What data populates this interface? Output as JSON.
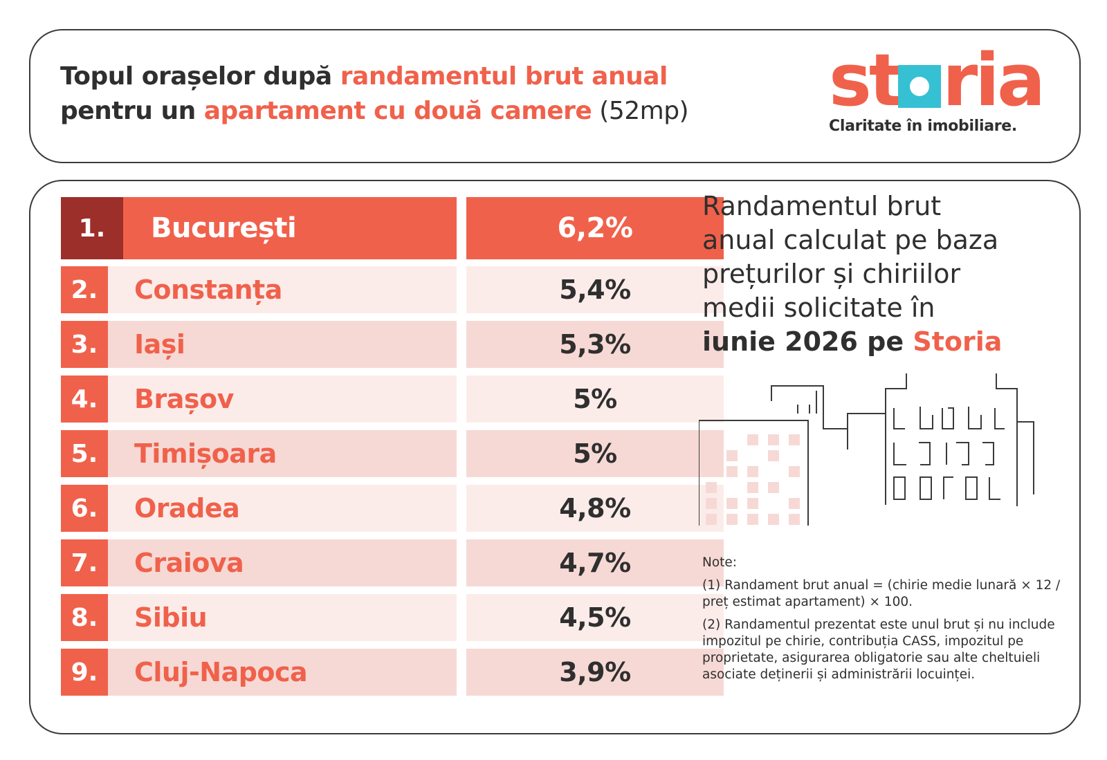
{
  "header": {
    "title_part1": "Topul orașelor după ",
    "title_accent1": "randamentul brut anual",
    "title_part2": "pentru un ",
    "title_accent2": "apartament cu două camere",
    "title_part3": " (52mp)"
  },
  "logo": {
    "brand_st": "st",
    "brand_ria": "ria",
    "tagline": "Claritate în imobiliare."
  },
  "colors": {
    "accent": "#f0614b",
    "first_rank_bg": "#9c2f2a",
    "logo_square": "#35c1d3",
    "row_light": "#fbecea",
    "row_dark": "#f6d9d5",
    "text": "#2f2f2f"
  },
  "description": {
    "line1": "Randamentul brut",
    "line2": "anual calculat pe baza",
    "line3": "prețurilor și chiriilor",
    "line4": "medii solicitate în",
    "line5_strong": "iunie 2026 pe ",
    "line5_accent": "Storia"
  },
  "notes": {
    "heading": "Note:",
    "note1": "(1) Randament brut anual = (chirie medie lunară × 12 / preț estimat apartament) × 100.",
    "note2": "(2) Randamentul prezentat este unul brut și nu include impozitul pe chirie, contribuția CASS, impozitul pe proprietate, asigurarea obligatorie sau alte cheltuieli asociate deținerii și administrării locuinței."
  },
  "chart_data": {
    "type": "table",
    "columns": [
      "rank",
      "city",
      "yield"
    ],
    "rows": [
      {
        "rank": "1.",
        "city": "București",
        "value": 6.2,
        "label": "6,2%"
      },
      {
        "rank": "2.",
        "city": "Constanța",
        "value": 5.4,
        "label": "5,4%"
      },
      {
        "rank": "3.",
        "city": "Iași",
        "value": 5.3,
        "label": "5,3%"
      },
      {
        "rank": "4.",
        "city": "Brașov",
        "value": 5.0,
        "label": "5%"
      },
      {
        "rank": "5.",
        "city": "Timișoara",
        "value": 5.0,
        "label": "5%"
      },
      {
        "rank": "6.",
        "city": "Oradea",
        "value": 4.8,
        "label": "4,8%"
      },
      {
        "rank": "7.",
        "city": "Craiova",
        "value": 4.7,
        "label": "4,7%"
      },
      {
        "rank": "8.",
        "city": "Sibiu",
        "value": 4.5,
        "label": "4,5%"
      },
      {
        "rank": "9.",
        "city": "Cluj-Napoca",
        "value": 3.9,
        "label": "3,9%"
      }
    ]
  }
}
